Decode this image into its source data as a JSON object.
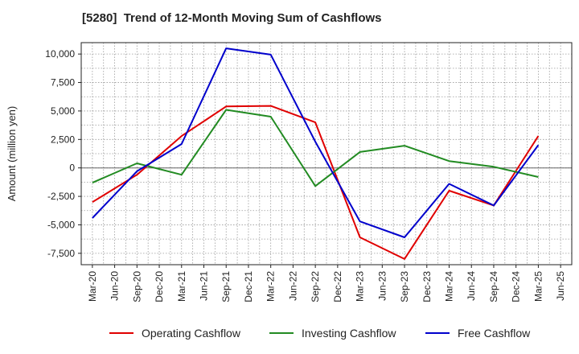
{
  "chart_data": {
    "type": "line",
    "title": "[5280]  Trend of 12-Month Moving Sum of Cashflows",
    "xlabel": "",
    "ylabel": "Amount (million yen)",
    "categories": [
      "Mar-20",
      "Jun-20",
      "Sep-20",
      "Dec-20",
      "Mar-21",
      "Jun-21",
      "Sep-21",
      "Dec-21",
      "Mar-22",
      "Jun-22",
      "Sep-22",
      "Dec-22",
      "Mar-23",
      "Jun-23",
      "Sep-23",
      "Dec-23",
      "Mar-24",
      "Jun-24",
      "Sep-24",
      "Dec-24",
      "Mar-25",
      "Jun-25"
    ],
    "ylim": [
      -8500,
      11000
    ],
    "yticks": [
      10000,
      7500,
      5000,
      2500,
      0,
      -2500,
      -5000,
      -7500
    ],
    "ytick_labels": [
      "10,000",
      "7,500",
      "5,000",
      "2,500",
      "0",
      "-2,500",
      "-5,000",
      "-7,500"
    ],
    "grid": true,
    "legend_position": "bottom",
    "series": [
      {
        "name": "Operating Cashflow",
        "color": "#e00000",
        "x": [
          "Mar-20",
          "Sep-20",
          "Mar-21",
          "Sep-21",
          "Mar-22",
          "Sep-22",
          "Mar-23",
          "Sep-23",
          "Mar-24",
          "Sep-24",
          "Mar-25"
        ],
        "values": [
          -3000,
          -600,
          2800,
          5400,
          5450,
          4000,
          -6100,
          -8000,
          -2000,
          -3300,
          2800
        ]
      },
      {
        "name": "Investing Cashflow",
        "color": "#228b22",
        "x": [
          "Mar-20",
          "Sep-20",
          "Mar-21",
          "Sep-21",
          "Mar-22",
          "Sep-22",
          "Mar-23",
          "Sep-23",
          "Mar-24",
          "Sep-24",
          "Mar-25"
        ],
        "values": [
          -1300,
          400,
          -600,
          5100,
          4500,
          -1600,
          1400,
          1950,
          600,
          100,
          -800
        ]
      },
      {
        "name": "Free Cashflow",
        "color": "#0000cc",
        "x": [
          "Mar-20",
          "Sep-20",
          "Mar-21",
          "Sep-21",
          "Mar-22",
          "Sep-22",
          "Mar-23",
          "Sep-23",
          "Mar-24",
          "Sep-24",
          "Mar-25"
        ],
        "values": [
          -4400,
          -300,
          2100,
          10500,
          9950,
          2300,
          -4700,
          -6100,
          -1400,
          -3300,
          2000
        ]
      }
    ]
  }
}
